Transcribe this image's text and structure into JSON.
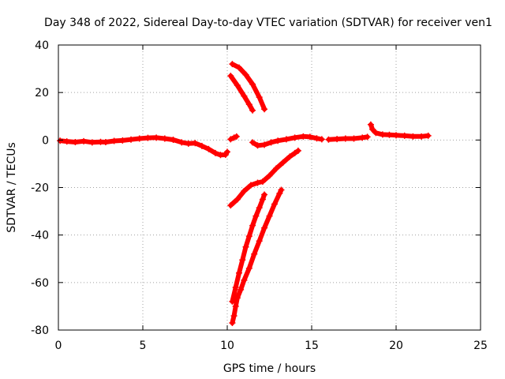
{
  "chart_data": {
    "type": "scatter",
    "title": "Day 348 of 2022, Sidereal Day-to-day VTEC variation (SDTVAR) for receiver ven1",
    "xlabel": "GPS time / hours",
    "ylabel": "SDTVAR / TECUs",
    "xlim": [
      0,
      25
    ],
    "ylim": [
      -80,
      40
    ],
    "x_ticks": [
      0,
      5,
      10,
      15,
      20,
      25
    ],
    "y_ticks": [
      -80,
      -60,
      -40,
      -20,
      0,
      20,
      40
    ],
    "x_tick_labels": [
      "0",
      "5",
      "10",
      "15",
      "20",
      "25"
    ],
    "y_tick_labels": [
      "-80",
      "-60",
      "-40",
      "-20",
      "0",
      "20",
      "40"
    ],
    "grid": true,
    "marker": "+",
    "color": "#ff0000",
    "series": [
      {
        "values": [
          [
            0.1,
            -0.3
          ],
          [
            0.5,
            -0.6
          ],
          [
            1.0,
            -0.9
          ],
          [
            1.5,
            -0.5
          ],
          [
            2.0,
            -1.0
          ],
          [
            2.5,
            -0.8
          ],
          [
            2.8,
            -0.9
          ],
          [
            3.3,
            -0.4
          ],
          [
            3.8,
            -0.2
          ],
          [
            4.3,
            0.2
          ],
          [
            4.8,
            0.6
          ],
          [
            5.3,
            0.9
          ],
          [
            5.8,
            1.0
          ],
          [
            6.3,
            0.6
          ],
          [
            6.8,
            0.1
          ],
          [
            7.3,
            -1.0
          ],
          [
            7.7,
            -1.5
          ],
          [
            8.1,
            -1.3
          ],
          [
            8.5,
            -2.5
          ],
          [
            8.9,
            -3.8
          ],
          [
            9.3,
            -5.5
          ],
          [
            9.6,
            -6.3
          ],
          [
            9.9,
            -6.2
          ],
          [
            10.0,
            -5.0
          ]
        ]
      },
      {
        "values": [
          [
            10.2,
            0.3
          ],
          [
            10.4,
            1.0
          ],
          [
            10.55,
            1.5
          ]
        ]
      },
      {
        "values": [
          [
            10.3,
            32.0
          ],
          [
            10.7,
            30.5
          ],
          [
            11.1,
            27.5
          ],
          [
            11.5,
            23.5
          ],
          [
            11.9,
            18.0
          ],
          [
            12.2,
            13.0
          ]
        ]
      },
      {
        "values": [
          [
            10.2,
            27.0
          ],
          [
            10.6,
            23.0
          ],
          [
            11.0,
            18.5
          ],
          [
            11.3,
            15.0
          ],
          [
            11.5,
            12.5
          ]
        ]
      },
      {
        "values": [
          [
            11.5,
            -1.0
          ],
          [
            11.8,
            -2.3
          ],
          [
            12.2,
            -2.0
          ],
          [
            12.6,
            -1.0
          ],
          [
            13.0,
            -0.3
          ],
          [
            13.5,
            0.3
          ],
          [
            14.0,
            1.0
          ],
          [
            14.5,
            1.5
          ],
          [
            14.9,
            1.3
          ],
          [
            15.3,
            0.7
          ],
          [
            15.6,
            0.3
          ]
        ]
      },
      {
        "values": [
          [
            16.0,
            0.2
          ],
          [
            16.5,
            0.4
          ],
          [
            17.0,
            0.6
          ],
          [
            17.5,
            0.6
          ],
          [
            18.0,
            1.0
          ],
          [
            18.3,
            1.3
          ]
        ]
      },
      {
        "values": [
          [
            18.5,
            6.5
          ],
          [
            18.6,
            4.5
          ],
          [
            18.8,
            3.0
          ],
          [
            19.2,
            2.3
          ],
          [
            19.6,
            2.2
          ],
          [
            20.0,
            2.0
          ],
          [
            20.5,
            1.8
          ],
          [
            21.0,
            1.5
          ],
          [
            21.5,
            1.5
          ],
          [
            21.9,
            1.8
          ]
        ]
      },
      {
        "values": [
          [
            10.2,
            -27.5
          ],
          [
            10.6,
            -25.0
          ],
          [
            11.0,
            -21.5
          ],
          [
            11.4,
            -19.0
          ],
          [
            11.8,
            -18.0
          ],
          [
            12.1,
            -17.5
          ],
          [
            12.5,
            -15.0
          ],
          [
            12.9,
            -12.0
          ],
          [
            13.3,
            -9.5
          ],
          [
            13.7,
            -7.0
          ],
          [
            14.0,
            -5.5
          ],
          [
            14.2,
            -4.5
          ]
        ]
      },
      {
        "values": [
          [
            10.3,
            -68.0
          ],
          [
            10.5,
            -62.0
          ],
          [
            10.7,
            -56.0
          ],
          [
            10.9,
            -50.5
          ],
          [
            11.1,
            -45.0
          ],
          [
            11.3,
            -40.5
          ],
          [
            11.5,
            -36.0
          ],
          [
            11.7,
            -32.0
          ],
          [
            11.9,
            -28.5
          ],
          [
            12.1,
            -25.0
          ],
          [
            12.2,
            -23.0
          ]
        ]
      },
      {
        "values": [
          [
            10.3,
            -77.0
          ],
          [
            10.4,
            -74.0
          ],
          [
            10.5,
            -70.0
          ],
          [
            10.6,
            -66.5
          ],
          [
            10.8,
            -63.0
          ],
          [
            11.0,
            -59.0
          ],
          [
            11.3,
            -54.0
          ],
          [
            11.6,
            -48.0
          ],
          [
            11.9,
            -42.5
          ],
          [
            12.2,
            -37.0
          ],
          [
            12.5,
            -32.0
          ],
          [
            12.8,
            -27.0
          ],
          [
            13.1,
            -22.5
          ],
          [
            13.2,
            -21.0
          ]
        ]
      }
    ]
  }
}
